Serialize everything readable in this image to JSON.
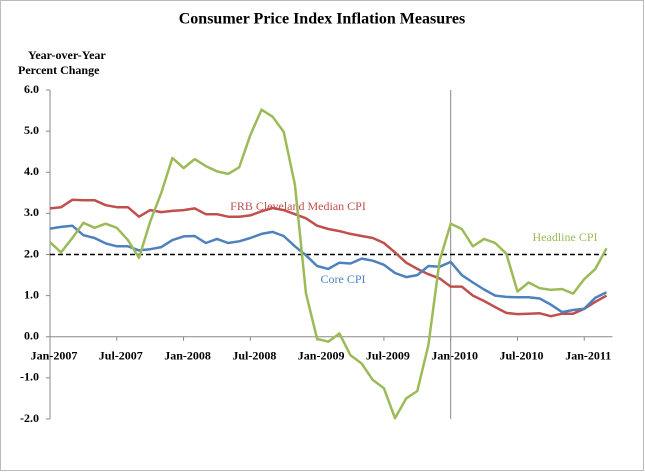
{
  "chart_data": {
    "type": "line",
    "title": "Consumer Price Index Inflation Measures",
    "ylabel": [
      "Year-over-Year",
      "Percent Change"
    ],
    "categories": [
      "Jan-2007",
      null,
      null,
      null,
      null,
      null,
      "Jul-2007",
      null,
      null,
      null,
      null,
      null,
      "Jan-2008",
      null,
      null,
      null,
      null,
      null,
      "Jul-2008",
      null,
      null,
      null,
      null,
      null,
      "Jan-2009",
      null,
      null,
      null,
      null,
      null,
      "Jul-2009",
      null,
      null,
      null,
      null,
      null,
      "Jan-2010",
      null,
      null,
      null,
      null,
      null,
      "Jul-2010",
      null,
      null,
      null,
      null,
      null,
      "Jan-2011",
      null,
      null
    ],
    "series": [
      {
        "name": "FRB Cleveland Median CPI",
        "color": "#c0504d",
        "values": [
          3.12,
          3.15,
          3.33,
          3.32,
          3.32,
          3.2,
          3.15,
          3.15,
          2.92,
          3.08,
          3.03,
          3.06,
          3.08,
          3.12,
          2.98,
          2.98,
          2.92,
          2.92,
          2.95,
          3.05,
          3.13,
          3.08,
          2.98,
          2.88,
          2.7,
          2.62,
          2.57,
          2.5,
          2.45,
          2.4,
          2.28,
          2.05,
          1.8,
          1.65,
          1.52,
          1.42,
          1.22,
          1.22,
          1.0,
          0.87,
          0.72,
          0.58,
          0.55,
          0.56,
          0.57,
          0.5,
          0.56,
          0.56,
          0.68,
          0.85,
          1.0
        ]
      },
      {
        "name": "Core CPI",
        "color": "#4f81bd",
        "values": [
          2.63,
          2.67,
          2.7,
          2.47,
          2.4,
          2.27,
          2.2,
          2.2,
          2.1,
          2.13,
          2.18,
          2.35,
          2.44,
          2.45,
          2.28,
          2.38,
          2.28,
          2.32,
          2.4,
          2.5,
          2.55,
          2.45,
          2.2,
          1.98,
          1.72,
          1.65,
          1.8,
          1.78,
          1.9,
          1.85,
          1.75,
          1.55,
          1.45,
          1.5,
          1.72,
          1.7,
          1.82,
          1.5,
          1.32,
          1.15,
          1.0,
          0.97,
          0.96,
          0.96,
          0.93,
          0.78,
          0.6,
          0.65,
          0.68,
          0.95,
          1.08
        ]
      },
      {
        "name": "Headline CPI",
        "color": "#9bbb59",
        "values": [
          2.3,
          2.05,
          2.4,
          2.77,
          2.65,
          2.75,
          2.65,
          2.35,
          1.92,
          2.8,
          3.5,
          4.35,
          4.1,
          4.32,
          4.15,
          4.02,
          3.96,
          4.12,
          4.9,
          5.52,
          5.35,
          4.98,
          3.7,
          1.05,
          -0.05,
          -0.12,
          0.08,
          -0.45,
          -0.65,
          -1.05,
          -1.25,
          -1.98,
          -1.5,
          -1.32,
          -0.2,
          1.85,
          2.75,
          2.62,
          2.2,
          2.38,
          2.28,
          2.02,
          1.1,
          1.32,
          1.18,
          1.14,
          1.16,
          1.05,
          1.4,
          1.65,
          2.15
        ]
      }
    ],
    "ylim": [
      -2,
      6
    ],
    "yticks": [
      {
        "value": -2,
        "label": "-2.0"
      },
      {
        "value": -1,
        "label": "-1.0"
      },
      {
        "value": 0,
        "label": "0.0"
      },
      {
        "value": 1,
        "label": "1.0"
      },
      {
        "value": 2,
        "label": "2.0"
      },
      {
        "value": 3,
        "label": "3.0"
      },
      {
        "value": 4,
        "label": "4.0"
      },
      {
        "value": 5,
        "label": "5.0"
      },
      {
        "value": 6,
        "label": "6.0"
      }
    ],
    "hline": 2,
    "vline": "Jan-2010",
    "grid": false
  }
}
